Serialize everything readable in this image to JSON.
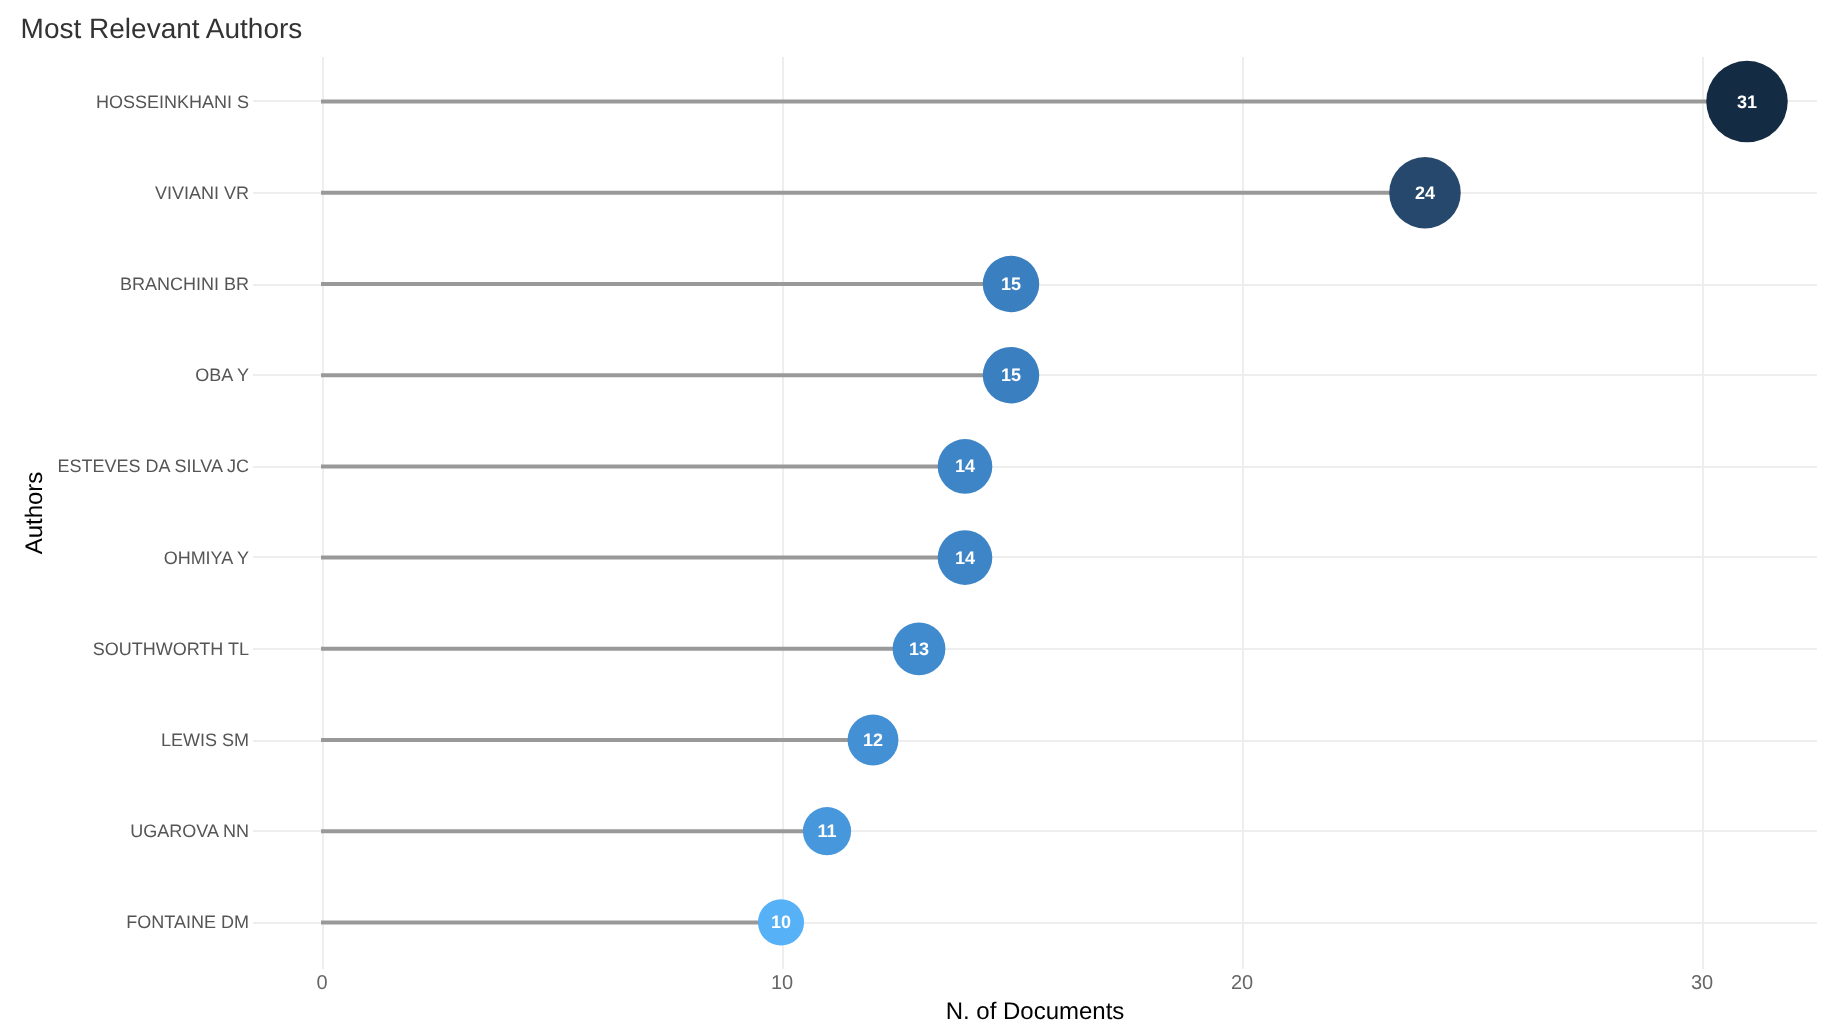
{
  "chart_data": {
    "type": "lollipop",
    "orientation": "horizontal",
    "title": "Most Relevant Authors",
    "xlabel": "N. of Documents",
    "ylabel": "Authors",
    "categories": [
      "HOSSEINKHANI S",
      "VIVIANI VR",
      "BRANCHINI BR",
      "OBA Y",
      "ESTEVES DA SILVA JC",
      "OHMIYA Y",
      "SOUTHWORTH TL",
      "LEWIS SM",
      "UGAROVA NN",
      "FONTAINE DM"
    ],
    "values": [
      31,
      24,
      15,
      15,
      14,
      14,
      13,
      12,
      11,
      10
    ],
    "sizes": [
      1,
      0.77,
      0.48,
      0.48,
      0.45,
      0.45,
      0.42,
      0.39,
      0.35,
      0.32
    ],
    "colors": [
      "#132b43",
      "#26486c",
      "#3a7fbf",
      "#3a7fbf",
      "#3d85c7",
      "#3d85c7",
      "#408bcd",
      "#4391d4",
      "#4797dc",
      "#56b1f7"
    ],
    "xlim": [
      -1.5,
      32.5
    ],
    "xticks": [
      0,
      10,
      20,
      30
    ],
    "grid": true,
    "legend": false,
    "marker": "circle",
    "data_labels": true
  }
}
